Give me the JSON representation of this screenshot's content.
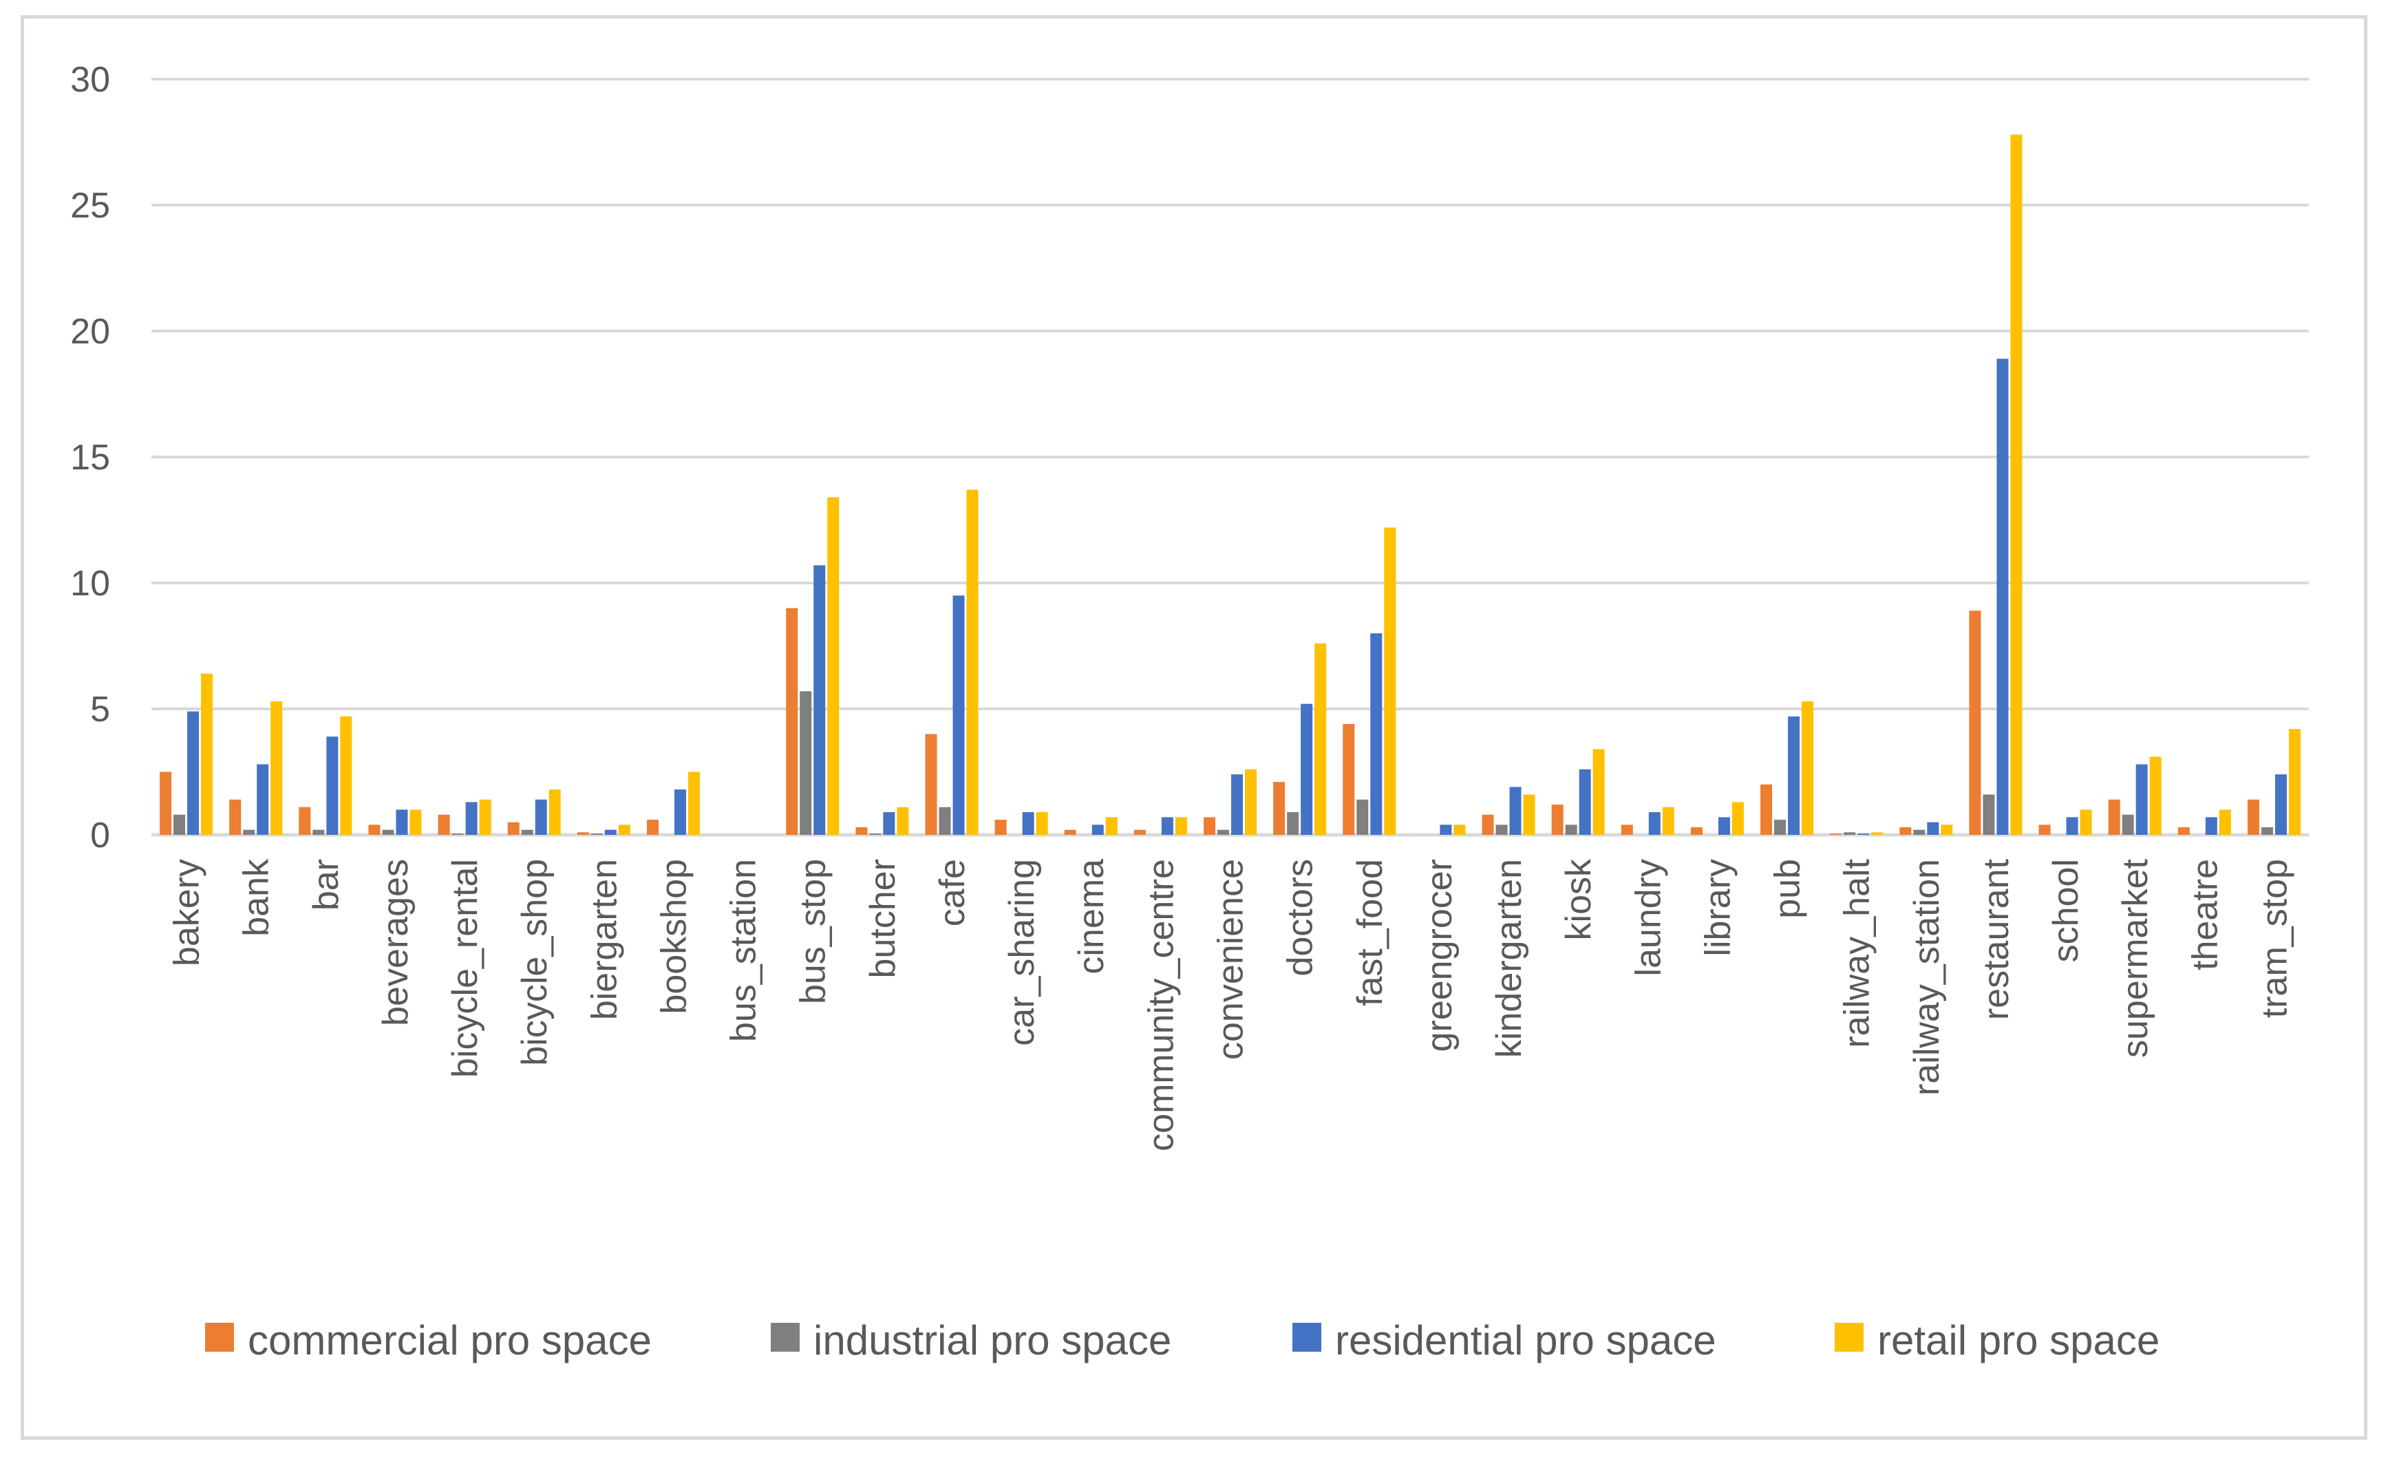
{
  "chart_data": {
    "type": "bar",
    "title": "",
    "xlabel": "",
    "ylabel": "",
    "ylim": [
      0,
      30
    ],
    "yticks": [
      0,
      5,
      10,
      15,
      20,
      25,
      30
    ],
    "grid": true,
    "legend_position": "bottom",
    "categories": [
      "bakery",
      "bank",
      "bar",
      "beverages",
      "bicycle_rental",
      "bicycle_shop",
      "biergarten",
      "bookshop",
      "bus_station",
      "bus_stop",
      "butcher",
      "cafe",
      "car_sharing",
      "cinema",
      "community_centre",
      "convenience",
      "doctors",
      "fast_food",
      "greengrocer",
      "kindergarten",
      "kiosk",
      "laundry",
      "library",
      "pub",
      "railway_halt",
      "railway_station",
      "restaurant",
      "school",
      "supermarket",
      "theatre",
      "tram_stop"
    ],
    "series": [
      {
        "name": "commercial pro space",
        "color": "#ED7D31",
        "values": [
          2.5,
          1.4,
          1.1,
          0.4,
          0.8,
          0.5,
          0.1,
          0.6,
          0.0,
          9.0,
          0.3,
          4.0,
          0.6,
          0.2,
          0.2,
          0.7,
          2.1,
          4.4,
          0.0,
          0.8,
          1.2,
          0.4,
          0.3,
          2.0,
          0.05,
          0.3,
          8.9,
          0.4,
          1.4,
          0.3,
          1.4
        ]
      },
      {
        "name": "industrial pro space",
        "color": "#7F7F7F",
        "values": [
          0.8,
          0.2,
          0.2,
          0.2,
          0.05,
          0.2,
          0.05,
          0.0,
          0.0,
          5.7,
          0.05,
          1.1,
          0.0,
          0.0,
          0.0,
          0.2,
          0.9,
          1.4,
          0.0,
          0.4,
          0.4,
          0.0,
          0.0,
          0.6,
          0.1,
          0.2,
          1.6,
          0.0,
          0.8,
          0.0,
          0.3
        ]
      },
      {
        "name": "residential pro space",
        "color": "#4472C4",
        "values": [
          4.9,
          2.8,
          3.9,
          1.0,
          1.3,
          1.4,
          0.2,
          1.8,
          0.0,
          10.7,
          0.9,
          9.5,
          0.9,
          0.4,
          0.7,
          2.4,
          5.2,
          8.0,
          0.4,
          1.9,
          2.6,
          0.9,
          0.7,
          4.7,
          0.05,
          0.5,
          18.9,
          0.7,
          2.8,
          0.7,
          2.4
        ]
      },
      {
        "name": "retail pro space",
        "color": "#FFC000",
        "values": [
          6.4,
          5.3,
          4.7,
          1.0,
          1.4,
          1.8,
          0.4,
          2.5,
          0.0,
          13.4,
          1.1,
          13.7,
          0.9,
          0.7,
          0.7,
          2.6,
          7.6,
          12.2,
          0.4,
          1.6,
          3.4,
          1.1,
          1.3,
          5.3,
          0.1,
          0.4,
          27.8,
          1.0,
          3.1,
          1.0,
          4.2
        ]
      }
    ]
  }
}
